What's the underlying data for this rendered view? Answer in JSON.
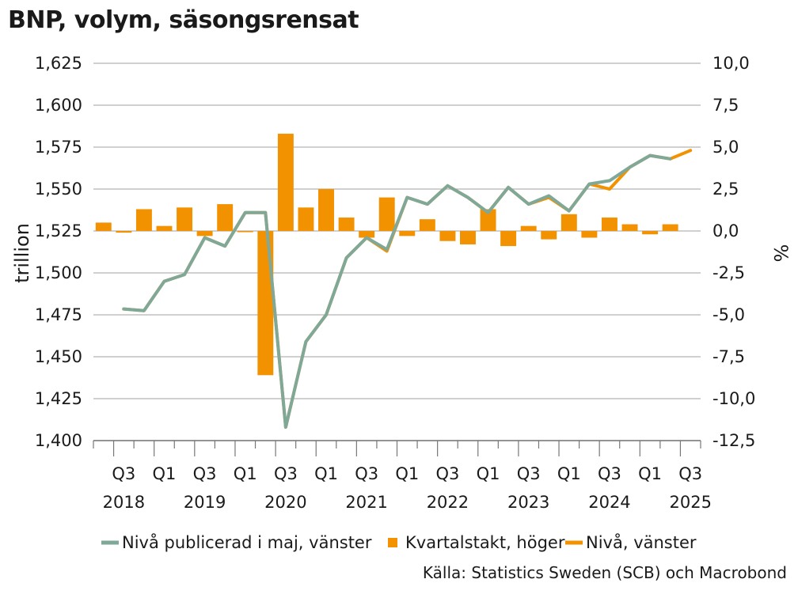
{
  "title": "BNP, volym, säsongsrensat",
  "source": "Källa: Statistics Sweden (SCB) och Macrobond",
  "colors": {
    "published_line": "#7fa898",
    "bars": "#f39200",
    "level_line": "#f39200",
    "grid": "#b3b3b3",
    "axis": "#777777"
  },
  "chart_data": {
    "type": "bar+line",
    "title": "BNP, volym, säsongsrensat",
    "y_left": {
      "label": "trillion",
      "min": 1400,
      "max": 1625,
      "step": 25,
      "tick_labels": [
        "1,400",
        "1,425",
        "1,450",
        "1,475",
        "1,500",
        "1,525",
        "1,550",
        "1,575",
        "1,600",
        "1,625"
      ]
    },
    "y_right": {
      "label": "%",
      "min": -12.5,
      "max": 10,
      "step": 2.5,
      "tick_labels": [
        "-12,5",
        "-10,0",
        "-7,5",
        "-5,0",
        "-2,5",
        "0,0",
        "2,5",
        "5,0",
        "7,5",
        "10,0"
      ]
    },
    "x_labels": [
      {
        "q": "Q3",
        "year": "2018",
        "index": 1
      },
      {
        "q": "Q1",
        "year": "",
        "index": 3
      },
      {
        "q": "Q3",
        "year": "2019",
        "index": 5
      },
      {
        "q": "Q1",
        "year": "",
        "index": 7
      },
      {
        "q": "Q3",
        "year": "2020",
        "index": 9
      },
      {
        "q": "Q1",
        "year": "",
        "index": 11
      },
      {
        "q": "Q3",
        "year": "2021",
        "index": 13
      },
      {
        "q": "Q1",
        "year": "",
        "index": 15
      },
      {
        "q": "Q3",
        "year": "2022",
        "index": 17
      },
      {
        "q": "Q1",
        "year": "",
        "index": 19
      },
      {
        "q": "Q3",
        "year": "2023",
        "index": 21
      },
      {
        "q": "Q1",
        "year": "",
        "index": 23
      },
      {
        "q": "Q3",
        "year": "2024",
        "index": 25
      },
      {
        "q": "Q1",
        "year": "",
        "index": 27
      },
      {
        "q": "Q3",
        "year": "2025",
        "index": 29
      }
    ],
    "periods": 30,
    "series": [
      {
        "name": "Nivå publicerad i maj, vänster",
        "type": "line",
        "axis": "left",
        "start_index": 1,
        "values": [
          1478.5,
          1477.5,
          1495,
          1499,
          1521,
          1516,
          1536,
          1536,
          1408,
          1459,
          1475,
          1509,
          1521,
          1514,
          1545,
          1541,
          1552,
          1545,
          1536,
          1551,
          1541,
          1546,
          1537,
          1553,
          1555,
          1563,
          1570,
          1568
        ]
      },
      {
        "name": "Kvartalstakt, höger",
        "type": "bar",
        "axis": "right",
        "start_index": 0,
        "values": [
          0.5,
          -0.1,
          1.3,
          0.3,
          1.4,
          -0.3,
          1.6,
          0.0,
          -8.6,
          5.8,
          1.4,
          2.5,
          0.8,
          -0.4,
          2.0,
          -0.3,
          0.7,
          -0.6,
          -0.8,
          1.3,
          -0.9,
          0.3,
          -0.5,
          1.0,
          -0.4,
          0.8,
          0.4,
          -0.2,
          0.4
        ]
      },
      {
        "name": "Nivå, vänster",
        "type": "line",
        "axis": "left",
        "start_index": 1,
        "values": [
          1478.5,
          1477.5,
          1495,
          1499,
          1521,
          1516,
          1536,
          1536,
          1408,
          1459,
          1475,
          1509,
          1521,
          1513,
          1545,
          1541,
          1552,
          1545,
          1536,
          1551,
          1541,
          1545,
          1537,
          1553,
          1550,
          1563,
          1570,
          1568,
          1573
        ]
      }
    ],
    "legend": [
      {
        "label": "Nivå publicerad i maj, vänster",
        "kind": "line",
        "color": "#7fa898"
      },
      {
        "label": "Kvartalstakt, höger",
        "kind": "square",
        "color": "#f39200"
      },
      {
        "label": "Nivå, vänster",
        "kind": "line",
        "color": "#f39200"
      }
    ]
  }
}
